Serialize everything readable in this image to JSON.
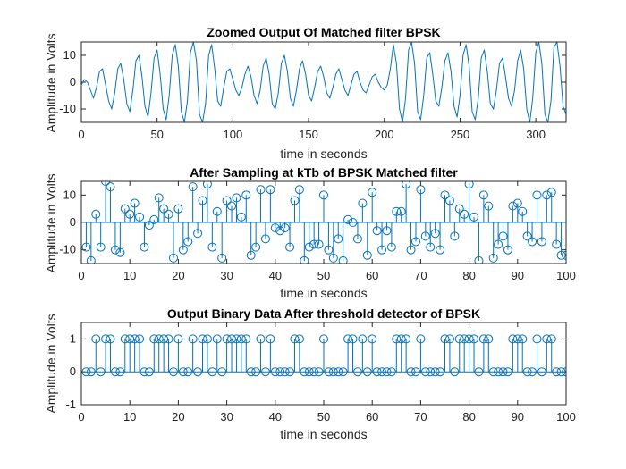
{
  "colors": {
    "series": "#0072BD",
    "axes": "#262626",
    "background": "#ffffff"
  },
  "chart_data": [
    {
      "type": "line",
      "title": "Zoomed Output Of Matched filter BPSK",
      "xlabel": "time in seconds",
      "ylabel": "Amplitude in Volts",
      "xlim": [
        0,
        320
      ],
      "ylim": [
        -15,
        15
      ],
      "xticks": [
        0,
        50,
        100,
        150,
        200,
        250,
        300
      ],
      "yticks": [
        -10,
        0,
        10
      ],
      "grid": false,
      "series": [
        {
          "x": [
            0,
            2,
            4,
            6,
            8,
            10,
            12,
            14,
            16,
            18,
            20,
            22,
            24,
            26,
            28,
            30,
            32,
            34,
            36,
            38,
            40,
            42,
            44,
            46,
            48,
            50,
            52,
            54,
            56,
            58,
            60,
            62,
            64,
            66,
            68,
            70,
            72,
            74,
            76,
            78,
            80,
            82,
            84,
            86,
            88,
            90,
            92,
            94,
            96,
            98,
            100,
            102,
            104,
            106,
            108,
            110,
            112,
            114,
            116,
            118,
            120,
            122,
            124,
            126,
            128,
            130,
            132,
            134,
            136,
            138,
            140,
            142,
            144,
            146,
            148,
            150,
            152,
            154,
            156,
            158,
            160,
            162,
            164,
            166,
            168,
            170,
            172,
            174,
            176,
            178,
            180,
            182,
            184,
            186,
            188,
            190,
            192,
            194,
            196,
            198,
            200,
            202,
            204,
            206,
            208,
            210,
            212,
            214,
            216,
            218,
            220,
            222,
            224,
            226,
            228,
            230,
            232,
            234,
            236,
            238,
            240,
            242,
            244,
            246,
            248,
            250,
            252,
            254,
            256,
            258,
            260,
            262,
            264,
            266,
            268,
            270,
            272,
            274,
            276,
            278,
            280,
            282,
            284,
            286,
            288,
            290,
            292,
            294,
            296,
            298,
            300,
            302,
            304,
            306,
            308,
            310,
            312,
            314,
            316,
            318,
            320
          ],
          "y": [
            -1,
            1,
            0,
            -3,
            -6,
            -2,
            4,
            5,
            -1,
            -7,
            -10,
            -4,
            5,
            7,
            1,
            -8,
            -11,
            -3,
            8,
            10,
            2,
            -9,
            -13,
            -4,
            9,
            12,
            3,
            -10,
            -14,
            -5,
            10,
            14,
            6,
            -11,
            -15,
            -7,
            11,
            15,
            8,
            -12,
            -15,
            -8,
            10,
            14,
            5,
            -7,
            -9,
            -2,
            4,
            5,
            1,
            -3,
            -5,
            -2,
            3,
            6,
            2,
            -5,
            -8,
            -3,
            6,
            9,
            3,
            -8,
            -10,
            -4,
            7,
            10,
            4,
            -6,
            -9,
            -3,
            5,
            8,
            3,
            -5,
            -7,
            -2,
            4,
            6,
            2,
            -4,
            -6,
            -2,
            3,
            5,
            1,
            -3,
            -5,
            -1,
            3,
            4,
            0,
            -3,
            -4,
            -1,
            2,
            3,
            0,
            -2,
            -3,
            -1,
            5,
            14,
            7,
            -10,
            -15,
            -6,
            12,
            15,
            7,
            -11,
            -14,
            -5,
            9,
            11,
            3,
            -7,
            -9,
            -2,
            8,
            11,
            4,
            -9,
            -13,
            -5,
            10,
            14,
            6,
            -11,
            -14,
            -6,
            9,
            12,
            4,
            -8,
            -10,
            -3,
            7,
            9,
            2,
            -6,
            -9,
            -3,
            8,
            12,
            5,
            -10,
            -15,
            -6,
            11,
            15,
            7,
            -12,
            -15,
            -7,
            13,
            15,
            6,
            -9,
            -12
          ]
        }
      ]
    },
    {
      "type": "stem",
      "title": "After Sampling at kTb of BPSK Matched filter",
      "xlabel": "time in seconds",
      "ylabel": "Amplitude in Volts",
      "xlim": [
        0,
        100
      ],
      "ylim": [
        -15,
        15
      ],
      "xticks": [
        0,
        10,
        20,
        30,
        40,
        50,
        60,
        70,
        80,
        90,
        100
      ],
      "yticks": [
        -10,
        0,
        10
      ],
      "grid": false,
      "series": [
        {
          "x": [
            1,
            2,
            3,
            4,
            5,
            6,
            7,
            8,
            9,
            10,
            11,
            12,
            13,
            14,
            15,
            16,
            17,
            18,
            19,
            20,
            21,
            22,
            23,
            24,
            25,
            26,
            27,
            28,
            29,
            30,
            31,
            32,
            33,
            34,
            35,
            36,
            37,
            38,
            39,
            40,
            41,
            42,
            43,
            44,
            45,
            46,
            47,
            48,
            49,
            50,
            51,
            52,
            53,
            54,
            55,
            56,
            57,
            58,
            59,
            60,
            61,
            62,
            63,
            64,
            65,
            66,
            67,
            68,
            69,
            70,
            71,
            72,
            73,
            74,
            75,
            76,
            77,
            78,
            79,
            80,
            81,
            82,
            83,
            84,
            85,
            86,
            87,
            88,
            89,
            90,
            91,
            92,
            93,
            94,
            95,
            96,
            97,
            98,
            99,
            100
          ],
          "values": [
            -9,
            -14,
            3,
            -9,
            15,
            13,
            -10,
            -11,
            5,
            3,
            7,
            2,
            -9,
            -1,
            1,
            9,
            5,
            3,
            -13,
            5,
            -10,
            -7,
            13,
            -4,
            8,
            14,
            -9,
            4,
            -13,
            8,
            6,
            9,
            2,
            10,
            -12,
            -9,
            12,
            -6,
            12,
            -2,
            -3,
            -2,
            -9,
            8,
            12,
            -14,
            -9,
            -8,
            -8,
            10,
            -10,
            -13,
            -6,
            -14,
            1,
            0,
            -6,
            7,
            -12,
            11,
            -3,
            -10,
            -3,
            -9,
            4,
            4,
            14,
            -10,
            -7,
            12,
            -5,
            -9,
            -4,
            -10,
            10,
            8,
            -5,
            5,
            3,
            14,
            2,
            -14,
            10,
            6,
            -13,
            -8,
            -5,
            -10,
            6,
            7,
            4,
            -5,
            -7,
            10,
            -7,
            10,
            11,
            -8,
            -12,
            -12
          ]
        }
      ]
    },
    {
      "type": "stem",
      "title": "Output Binary Data After threshold detector of BPSK",
      "xlabel": "time in seconds",
      "ylabel": "Amplitude in Volts",
      "xlim": [
        0,
        100
      ],
      "ylim": [
        -1,
        1.5
      ],
      "xticks": [
        0,
        10,
        20,
        30,
        40,
        50,
        60,
        70,
        80,
        90,
        100
      ],
      "yticks": [
        -1,
        0,
        1
      ],
      "grid": false,
      "series": [
        {
          "x": [
            1,
            2,
            3,
            4,
            5,
            6,
            7,
            8,
            9,
            10,
            11,
            12,
            13,
            14,
            15,
            16,
            17,
            18,
            19,
            20,
            21,
            22,
            23,
            24,
            25,
            26,
            27,
            28,
            29,
            30,
            31,
            32,
            33,
            34,
            35,
            36,
            37,
            38,
            39,
            40,
            41,
            42,
            43,
            44,
            45,
            46,
            47,
            48,
            49,
            50,
            51,
            52,
            53,
            54,
            55,
            56,
            57,
            58,
            59,
            60,
            61,
            62,
            63,
            64,
            65,
            66,
            67,
            68,
            69,
            70,
            71,
            72,
            73,
            74,
            75,
            76,
            77,
            78,
            79,
            80,
            81,
            82,
            83,
            84,
            85,
            86,
            87,
            88,
            89,
            90,
            91,
            92,
            93,
            94,
            95,
            96,
            97,
            98,
            99,
            100
          ],
          "values": [
            0,
            0,
            1,
            0,
            1,
            1,
            0,
            0,
            1,
            1,
            1,
            1,
            0,
            0,
            1,
            1,
            1,
            1,
            0,
            1,
            0,
            0,
            1,
            0,
            1,
            1,
            0,
            1,
            0,
            1,
            1,
            1,
            1,
            1,
            0,
            0,
            1,
            0,
            1,
            0,
            0,
            0,
            0,
            1,
            1,
            0,
            0,
            0,
            0,
            1,
            0,
            0,
            0,
            0,
            1,
            1,
            0,
            1,
            0,
            1,
            0,
            0,
            0,
            0,
            1,
            1,
            1,
            0,
            0,
            1,
            0,
            0,
            0,
            0,
            1,
            1,
            0,
            1,
            1,
            1,
            1,
            0,
            1,
            1,
            0,
            0,
            0,
            0,
            1,
            1,
            1,
            0,
            0,
            1,
            0,
            1,
            1,
            0,
            0,
            0
          ]
        }
      ]
    }
  ]
}
